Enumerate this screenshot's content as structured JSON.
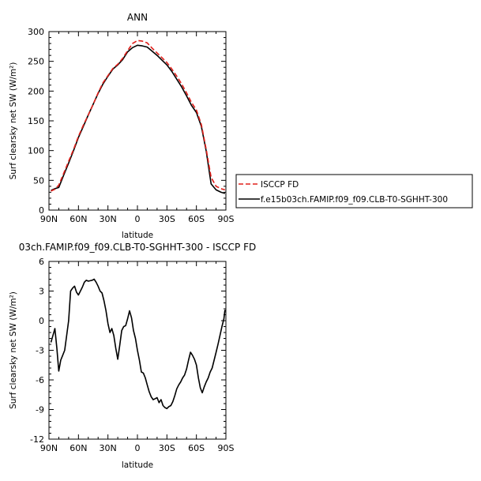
{
  "colors": {
    "isccp": "#e0201b",
    "model": "#000000"
  },
  "legend": {
    "items": [
      {
        "label": "ISCCP FD",
        "color": "#e0201b",
        "dash": true
      },
      {
        "label": "f.e15b03ch.FAMIP.f09_f09.CLB-T0-SGHHT-300",
        "color": "#000000",
        "dash": false
      }
    ]
  },
  "chart_data": [
    {
      "type": "line",
      "title": "ANN",
      "xlabel": "latitude",
      "ylabel": "Surf clearsky net SW (W/m²)",
      "xlim": [
        -90,
        90
      ],
      "ylim": [
        0,
        300
      ],
      "xticks": [
        -90,
        -60,
        -30,
        0,
        30,
        60,
        90
      ],
      "xticklabels": [
        "90N",
        "60N",
        "30N",
        "0",
        "30S",
        "60S",
        "90S"
      ],
      "yticks": [
        0,
        50,
        100,
        150,
        200,
        250,
        300
      ],
      "yticklabels": [
        "0",
        "50",
        "100",
        "150",
        "200",
        "250",
        "300"
      ],
      "series": [
        {
          "name": "ISCCP FD",
          "x": [
            -88,
            -84,
            -80,
            -75,
            -70,
            -65,
            -60,
            -55,
            -50,
            -45,
            -40,
            -35,
            -30,
            -25,
            -20,
            -15,
            -10,
            -5,
            0,
            5,
            10,
            15,
            20,
            25,
            30,
            35,
            40,
            45,
            50,
            55,
            60,
            65,
            70,
            75,
            80,
            85,
            89
          ],
          "values": [
            32,
            35,
            42,
            62,
            82,
            102,
            124,
            143,
            160,
            178,
            197,
            214,
            226,
            238,
            245,
            255,
            268,
            280,
            285,
            284,
            281,
            272,
            264,
            256,
            248,
            237,
            225,
            212,
            197,
            181,
            168,
            144,
            102,
            55,
            40,
            36,
            34
          ]
        },
        {
          "name": "f.e15b03ch.FAMIP.f09_f09.CLB-T0-SGHHT-300",
          "x": [
            -88,
            -84,
            -80,
            -75,
            -70,
            -65,
            -60,
            -55,
            -50,
            -45,
            -40,
            -35,
            -30,
            -25,
            -20,
            -15,
            -10,
            -5,
            0,
            5,
            10,
            15,
            20,
            25,
            30,
            35,
            40,
            45,
            50,
            55,
            60,
            65,
            70,
            75,
            80,
            85,
            89
          ],
          "values": [
            33,
            36,
            38,
            59,
            79,
            100,
            122,
            141,
            160,
            178,
            196,
            212,
            225,
            237,
            244,
            253,
            266,
            273,
            277,
            276,
            274,
            267,
            260,
            252,
            244,
            233,
            220,
            207,
            192,
            176,
            164,
            141,
            99,
            44,
            34,
            30,
            28
          ]
        }
      ]
    },
    {
      "type": "line",
      "title": "03ch.FAMIP.f09_f09.CLB-T0-SGHHT-300 - ISCCP FD",
      "xlabel": "latitude",
      "ylabel": "Surf clearsky net SW (W/m²)",
      "xlim": [
        -90,
        90
      ],
      "ylim": [
        -12,
        6
      ],
      "xticks": [
        -90,
        -60,
        -30,
        0,
        30,
        60,
        90
      ],
      "xticklabels": [
        "90N",
        "60N",
        "30N",
        "0",
        "30S",
        "60S",
        "90S"
      ],
      "yticks": [
        -12,
        -9,
        -6,
        -3,
        0,
        3,
        6
      ],
      "yticklabels": [
        "-12",
        "-9",
        "-6",
        "-3",
        "0",
        "3",
        "6"
      ],
      "series": [
        {
          "x": [
            -88,
            -86,
            -84,
            -82,
            -80,
            -78,
            -76,
            -74,
            -72,
            -70,
            -68,
            -66,
            -64,
            -62,
            -60,
            -58,
            -56,
            -54,
            -52,
            -50,
            -48,
            -46,
            -44,
            -42,
            -40,
            -38,
            -36,
            -34,
            -32,
            -30,
            -28,
            -26,
            -24,
            -22,
            -20,
            -18,
            -16,
            -14,
            -12,
            -10,
            -8,
            -6,
            -4,
            -2,
            0,
            2,
            4,
            6,
            8,
            10,
            12,
            14,
            16,
            18,
            20,
            22,
            24,
            26,
            28,
            30,
            32,
            34,
            36,
            38,
            40,
            42,
            44,
            46,
            48,
            50,
            52,
            54,
            56,
            58,
            60,
            62,
            64,
            66,
            68,
            70,
            72,
            74,
            76,
            78,
            80,
            82,
            84,
            86,
            88,
            89
          ],
          "values": [
            -2.2,
            -1.5,
            -0.8,
            -2.8,
            -5.1,
            -4.0,
            -3.5,
            -3.0,
            -1.5,
            0.0,
            3.0,
            3.3,
            3.5,
            2.9,
            2.6,
            3.0,
            3.4,
            3.9,
            4.1,
            4.0,
            4.05,
            4.1,
            4.2,
            3.9,
            3.5,
            3.0,
            2.8,
            2.0,
            1.0,
            -0.3,
            -1.2,
            -0.8,
            -1.5,
            -2.8,
            -3.9,
            -2.5,
            -1.0,
            -0.6,
            -0.5,
            0.2,
            1.0,
            0.3,
            -1.0,
            -1.8,
            -3.0,
            -4.0,
            -5.2,
            -5.3,
            -5.8,
            -6.5,
            -7.2,
            -7.7,
            -8.0,
            -7.9,
            -7.8,
            -8.3,
            -8.0,
            -8.6,
            -8.8,
            -8.9,
            -8.7,
            -8.6,
            -8.2,
            -7.6,
            -6.9,
            -6.5,
            -6.2,
            -5.8,
            -5.5,
            -4.9,
            -4.0,
            -3.2,
            -3.5,
            -3.9,
            -4.5,
            -5.8,
            -6.8,
            -7.3,
            -6.7,
            -6.2,
            -5.8,
            -5.2,
            -4.8,
            -4.0,
            -3.2,
            -2.4,
            -1.5,
            -0.6,
            0.2,
            1.1
          ]
        }
      ]
    }
  ]
}
